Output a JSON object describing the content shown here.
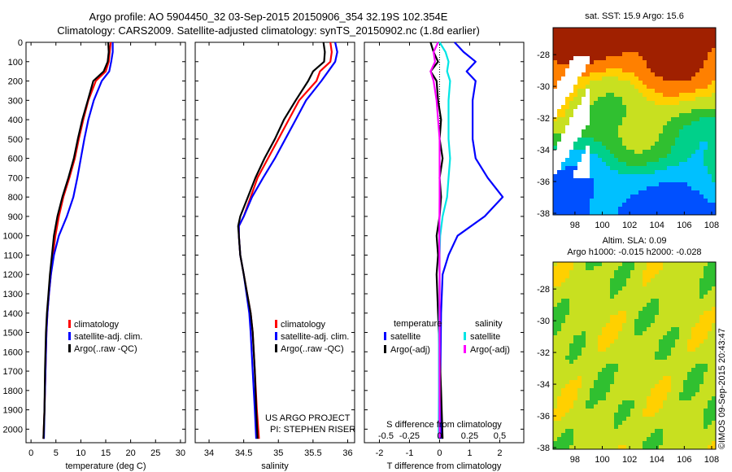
{
  "header": {
    "line1": "Argo profile: AO 5904450_32 03-Sep-2015 20150906_354 32.19S 102.354E",
    "line2": "Climatology: CARS2009. Satellite-adjusted climatology: synTS_20150902.nc (1.8d earlier)"
  },
  "depth_ticks": [
    0,
    100,
    200,
    300,
    400,
    500,
    600,
    700,
    800,
    900,
    1000,
    1100,
    1200,
    1300,
    1400,
    1500,
    1600,
    1700,
    1800,
    1900,
    2000
  ],
  "chart_data": [
    {
      "type": "line",
      "xlabel": "temperature (deg C)",
      "xlim": [
        -1,
        31
      ],
      "ylim": [
        0,
        2070
      ],
      "yreversed": true,
      "xticks": [
        "0",
        "5",
        "10",
        "15",
        "20",
        "25",
        "30"
      ],
      "xtick_values": [
        0,
        5,
        10,
        15,
        20,
        25,
        30
      ],
      "legend": [
        "climatology",
        "satellite-adj. clim.",
        "Argo(..raw -QC)"
      ],
      "series": [
        {
          "name": "climatology",
          "color": "#ff0000",
          "points": [
            [
              16.0,
              0
            ],
            [
              15.8,
              50
            ],
            [
              15.6,
              100
            ],
            [
              15.0,
              150
            ],
            [
              13.0,
              200
            ],
            [
              11.5,
              300
            ],
            [
              10.5,
              400
            ],
            [
              9.6,
              500
            ],
            [
              8.8,
              600
            ],
            [
              7.7,
              700
            ],
            [
              6.5,
              800
            ],
            [
              5.6,
              900
            ],
            [
              4.9,
              1000
            ],
            [
              4.4,
              1100
            ],
            [
              4.0,
              1200
            ],
            [
              3.6,
              1300
            ],
            [
              3.3,
              1400
            ],
            [
              3.1,
              1500
            ],
            [
              2.9,
              1700
            ],
            [
              2.7,
              1900
            ],
            [
              2.5,
              2050
            ]
          ]
        },
        {
          "name": "satellite-adj. clim.",
          "color": "#0000ff",
          "points": [
            [
              16.4,
              0
            ],
            [
              16.4,
              50
            ],
            [
              16.1,
              100
            ],
            [
              15.7,
              150
            ],
            [
              14.2,
              200
            ],
            [
              12.6,
              300
            ],
            [
              11.5,
              400
            ],
            [
              10.7,
              500
            ],
            [
              10.0,
              600
            ],
            [
              9.3,
              700
            ],
            [
              8.5,
              800
            ],
            [
              7.2,
              900
            ],
            [
              5.6,
              1000
            ],
            [
              4.6,
              1100
            ],
            [
              4.0,
              1200
            ],
            [
              3.6,
              1300
            ],
            [
              3.3,
              1400
            ],
            [
              3.1,
              1500
            ],
            [
              2.9,
              1700
            ],
            [
              2.7,
              1900
            ],
            [
              2.6,
              2050
            ]
          ]
        },
        {
          "name": "Argo(..raw -QC)",
          "color": "#000000",
          "points": [
            [
              15.5,
              0
            ],
            [
              15.6,
              50
            ],
            [
              15.4,
              100
            ],
            [
              14.6,
              150
            ],
            [
              12.5,
              200
            ],
            [
              11.4,
              300
            ],
            [
              10.3,
              400
            ],
            [
              9.4,
              500
            ],
            [
              8.6,
              600
            ],
            [
              7.5,
              700
            ],
            [
              6.3,
              800
            ],
            [
              5.3,
              900
            ],
            [
              4.6,
              1000
            ],
            [
              4.2,
              1100
            ],
            [
              3.8,
              1200
            ],
            [
              3.5,
              1300
            ],
            [
              3.2,
              1400
            ],
            [
              3.0,
              1500
            ],
            [
              2.8,
              1700
            ],
            [
              2.7,
              1900
            ],
            [
              2.5,
              2050
            ]
          ]
        }
      ]
    },
    {
      "type": "line",
      "xlabel": "salinity",
      "xlim": [
        33.8,
        36.1
      ],
      "ylim": [
        0,
        2070
      ],
      "yreversed": true,
      "xticks": [
        "34",
        "34.5",
        "35",
        "35.5",
        "36"
      ],
      "xtick_values": [
        34,
        34.5,
        35,
        35.5,
        36
      ],
      "legend": [
        "climatology",
        "satellite-adj. clim.",
        "Argo(..raw -QC)"
      ],
      "annotation": [
        "US ARGO PROJECT",
        "PI: STEPHEN RISER"
      ],
      "series": [
        {
          "name": "climatology",
          "color": "#ff0000",
          "points": [
            [
              35.75,
              0
            ],
            [
              35.77,
              50
            ],
            [
              35.75,
              100
            ],
            [
              35.6,
              150
            ],
            [
              35.55,
              200
            ],
            [
              35.3,
              300
            ],
            [
              35.15,
              400
            ],
            [
              35.0,
              500
            ],
            [
              34.85,
              600
            ],
            [
              34.7,
              700
            ],
            [
              34.6,
              800
            ],
            [
              34.5,
              900
            ],
            [
              34.43,
              950
            ],
            [
              34.43,
              1000
            ],
            [
              34.45,
              1100
            ],
            [
              34.5,
              1200
            ],
            [
              34.55,
              1300
            ],
            [
              34.6,
              1400
            ],
            [
              34.63,
              1500
            ],
            [
              34.66,
              1700
            ],
            [
              34.69,
              1900
            ],
            [
              34.72,
              2050
            ]
          ]
        },
        {
          "name": "satellite-adj. clim.",
          "color": "#0000ff",
          "points": [
            [
              35.82,
              0
            ],
            [
              35.85,
              50
            ],
            [
              35.82,
              100
            ],
            [
              35.72,
              150
            ],
            [
              35.62,
              200
            ],
            [
              35.4,
              300
            ],
            [
              35.25,
              400
            ],
            [
              35.1,
              500
            ],
            [
              34.95,
              600
            ],
            [
              34.78,
              700
            ],
            [
              34.62,
              800
            ],
            [
              34.5,
              900
            ],
            [
              34.43,
              950
            ],
            [
              34.43,
              1000
            ],
            [
              34.45,
              1100
            ],
            [
              34.5,
              1200
            ],
            [
              34.54,
              1300
            ],
            [
              34.58,
              1400
            ],
            [
              34.6,
              1500
            ],
            [
              34.63,
              1700
            ],
            [
              34.66,
              1900
            ],
            [
              34.68,
              2050
            ]
          ]
        },
        {
          "name": "Argo(..raw -QC)",
          "color": "#000000",
          "points": [
            [
              35.65,
              0
            ],
            [
              35.67,
              50
            ],
            [
              35.66,
              100
            ],
            [
              35.5,
              150
            ],
            [
              35.43,
              200
            ],
            [
              35.25,
              300
            ],
            [
              35.08,
              400
            ],
            [
              34.95,
              500
            ],
            [
              34.8,
              600
            ],
            [
              34.67,
              700
            ],
            [
              34.56,
              800
            ],
            [
              34.45,
              900
            ],
            [
              34.42,
              950
            ],
            [
              34.43,
              1000
            ],
            [
              34.45,
              1100
            ],
            [
              34.5,
              1200
            ],
            [
              34.55,
              1300
            ],
            [
              34.6,
              1400
            ],
            [
              34.63,
              1500
            ],
            [
              34.66,
              1700
            ],
            [
              34.68,
              1900
            ],
            [
              34.7,
              2050
            ]
          ]
        }
      ]
    },
    {
      "type": "line",
      "xlabel": "T difference from climatology",
      "top_axis_label": "S difference from climatology",
      "xlim": [
        -2.5,
        2.8
      ],
      "ylim": [
        0,
        2070
      ],
      "yreversed": true,
      "xticks": [
        "-2",
        "-1",
        "0",
        "1",
        "2"
      ],
      "xtick_values": [
        -2,
        -1,
        0,
        1,
        2
      ],
      "top_xticks": [
        "-0.5",
        "-0.25",
        "0",
        "0.25",
        "0.5"
      ],
      "legend_headers": [
        "temperature",
        "salinity"
      ],
      "legend_temperature": [
        "satellite",
        "Argo(-adj)"
      ],
      "legend_salinity": [
        "satellite",
        "Argo(-adj)"
      ],
      "series": [
        {
          "name": "temperature satellite",
          "color": "#0000ff",
          "points": [
            [
              0.5,
              0
            ],
            [
              0.8,
              50
            ],
            [
              1.2,
              100
            ],
            [
              0.9,
              150
            ],
            [
              1.2,
              200
            ],
            [
              1.1,
              300
            ],
            [
              1.1,
              400
            ],
            [
              1.1,
              500
            ],
            [
              1.2,
              600
            ],
            [
              1.6,
              700
            ],
            [
              2.1,
              800
            ],
            [
              1.5,
              900
            ],
            [
              0.6,
              1000
            ],
            [
              0.3,
              1100
            ],
            [
              0.1,
              1200
            ],
            [
              0.05,
              1400
            ],
            [
              0.02,
              1800
            ],
            [
              0.05,
              2050
            ]
          ]
        },
        {
          "name": "temperature Argo(-adj)",
          "color": "#000000",
          "points": [
            [
              -0.3,
              0
            ],
            [
              -0.2,
              50
            ],
            [
              -0.05,
              100
            ],
            [
              -0.3,
              150
            ],
            [
              -0.1,
              200
            ],
            [
              -0.05,
              300
            ],
            [
              0.05,
              400
            ],
            [
              0.0,
              500
            ],
            [
              0.1,
              600
            ],
            [
              0.0,
              700
            ],
            [
              0.05,
              800
            ],
            [
              0.0,
              900
            ],
            [
              -0.1,
              1000
            ],
            [
              -0.05,
              1100
            ],
            [
              -0.1,
              1200
            ],
            [
              -0.05,
              1400
            ],
            [
              0.05,
              1800
            ],
            [
              0.1,
              2050
            ]
          ]
        },
        {
          "name": "salinity satellite",
          "color": "#00e5e5",
          "points": [
            [
              0.0,
              0
            ],
            [
              0.2,
              50
            ],
            [
              0.3,
              100
            ],
            [
              0.25,
              150
            ],
            [
              0.35,
              200
            ],
            [
              0.3,
              300
            ],
            [
              0.3,
              400
            ],
            [
              0.3,
              500
            ],
            [
              0.35,
              600
            ],
            [
              0.3,
              700
            ],
            [
              0.25,
              800
            ],
            [
              0.1,
              900
            ],
            [
              0.02,
              1000
            ],
            [
              0.0,
              1100
            ],
            [
              0.0,
              1300
            ],
            [
              -0.02,
              1500
            ],
            [
              -0.02,
              1800
            ],
            [
              -0.03,
              2050
            ]
          ]
        },
        {
          "name": "salinity Argo(-adj)",
          "color": "#ff00ff",
          "points": [
            [
              -0.05,
              0
            ],
            [
              -0.2,
              50
            ],
            [
              -0.15,
              100
            ],
            [
              -0.3,
              150
            ],
            [
              -0.2,
              200
            ],
            [
              -0.1,
              300
            ],
            [
              -0.05,
              400
            ],
            [
              0.0,
              500
            ],
            [
              0.0,
              600
            ],
            [
              0.0,
              800
            ],
            [
              -0.01,
              1000
            ],
            [
              0.0,
              1200
            ],
            [
              0.0,
              1500
            ],
            [
              0.0,
              1800
            ],
            [
              0.0,
              2050
            ]
          ]
        }
      ]
    },
    {
      "type": "heatmap",
      "title": "sat. SST: 15.9  Argo: 15.6",
      "xticks": [
        "98",
        "100",
        "102",
        "104",
        "106",
        "108"
      ],
      "xtick_values": [
        98,
        100,
        102,
        104,
        106,
        108
      ],
      "yticks": [
        "-28",
        "-30",
        "-32",
        "-34",
        "-36",
        "-38"
      ],
      "ytick_values": [
        -28,
        -30,
        -32,
        -34,
        -36,
        -38
      ],
      "xlim": [
        96.4,
        108.3
      ],
      "ylim": [
        -38.1,
        -26.3
      ]
    },
    {
      "type": "heatmap",
      "title": "Altim. SLA: 0.09",
      "subtitle": "Argo h1000: -0.015 h2000: -0.028",
      "xticks": [
        "98",
        "100",
        "102",
        "104",
        "106",
        "108"
      ],
      "xtick_values": [
        98,
        100,
        102,
        104,
        106,
        108
      ],
      "yticks": [
        "-28",
        "-30",
        "-32",
        "-34",
        "-36",
        "-38"
      ],
      "ytick_values": [
        -28,
        -30,
        -32,
        -34,
        -36,
        -38
      ],
      "xlim": [
        96.4,
        108.3
      ],
      "ylim": [
        -38.1,
        -26.3
      ]
    }
  ],
  "credit": "©IMOS 09-Sep-2015 20:43:47"
}
